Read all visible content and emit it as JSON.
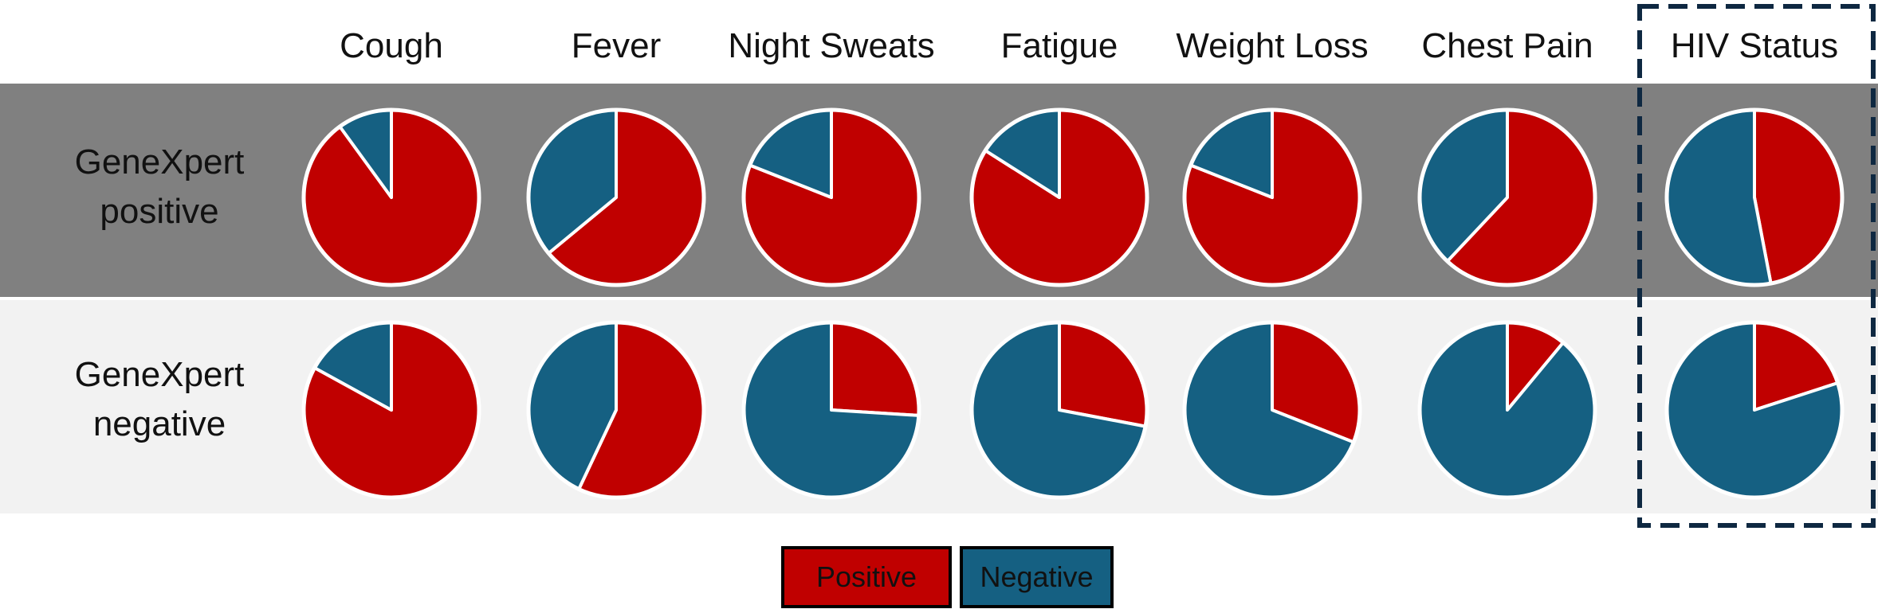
{
  "chart_data": {
    "type": "pie",
    "title": "",
    "categories": [
      "Cough",
      "Fever",
      "Night Sweats",
      "Fatigue",
      "Weight Loss",
      "Chest Pain",
      "HIV Status"
    ],
    "rows": [
      "GeneXpert positive",
      "GeneXpert negative"
    ],
    "row_lines": [
      [
        "GeneXpert",
        "positive"
      ],
      [
        "GeneXpert",
        "negative"
      ]
    ],
    "slice_order": [
      "Positive",
      "Negative"
    ],
    "series": [
      {
        "name": "GeneXpert positive",
        "positive_share": [
          0.9,
          0.64,
          0.81,
          0.84,
          0.81,
          0.62,
          0.47
        ]
      },
      {
        "name": "GeneXpert negative",
        "positive_share": [
          0.83,
          0.57,
          0.26,
          0.28,
          0.31,
          0.11,
          0.2
        ]
      }
    ],
    "legend": {
      "placement": "bottom-center",
      "entries": [
        {
          "label": "Positive",
          "color": "#C00000"
        },
        {
          "label": "Negative",
          "color": "#156082"
        }
      ]
    },
    "highlight": {
      "category": "HIV Status",
      "style": "dashed-box"
    },
    "colors": {
      "positive": "#C00000",
      "negative": "#156082",
      "row_positive_bg": "#808080",
      "row_negative_bg": "#F2F2F2",
      "highlight_border": "#0E2841"
    }
  }
}
